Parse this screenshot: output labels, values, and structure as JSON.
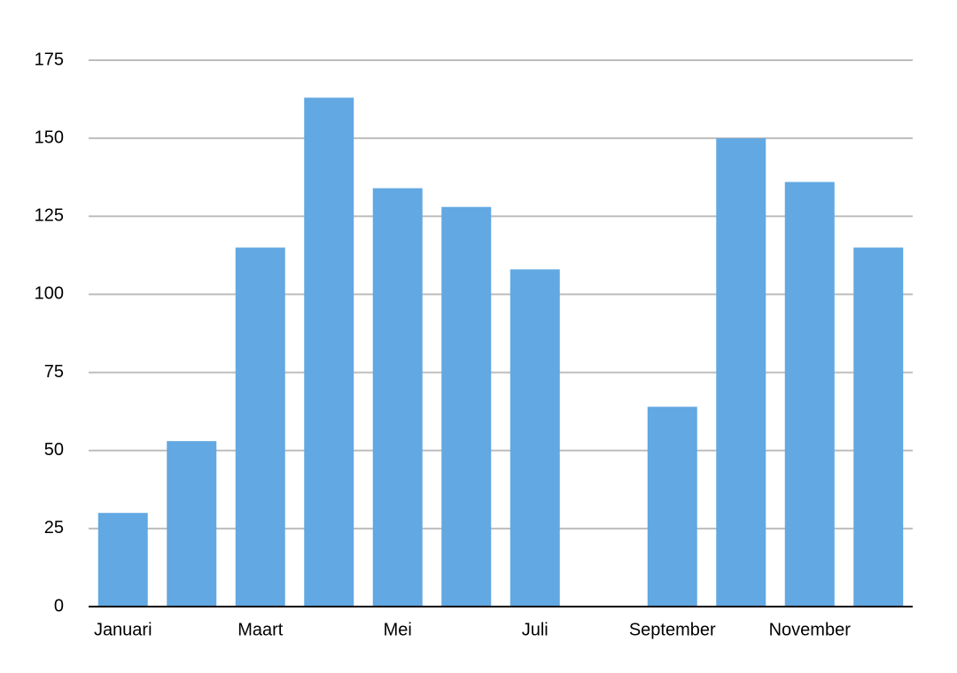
{
  "chart_data": {
    "type": "bar",
    "categories": [
      "Januari",
      null,
      "Maart",
      null,
      "Mei",
      null,
      "Juli",
      null,
      "September",
      null,
      "November",
      null
    ],
    "values": [
      30,
      53,
      115,
      163,
      134,
      128,
      108,
      0,
      64,
      150,
      136,
      115
    ],
    "color": "#62a8e2",
    "ylim": [
      0,
      175
    ],
    "yticks": [
      0,
      25,
      50,
      75,
      100,
      125,
      150,
      175
    ],
    "grid": true
  }
}
